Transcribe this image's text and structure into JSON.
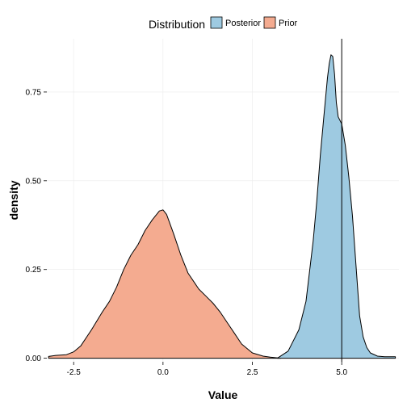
{
  "chart_data": {
    "type": "area",
    "title": "",
    "xlabel": "Value",
    "ylabel": "density",
    "xlim": [
      -3.25,
      6.6
    ],
    "ylim": [
      -0.01,
      0.9
    ],
    "x_ticks": [
      -2.5,
      0.0,
      2.5,
      5.0
    ],
    "x_tick_labels": [
      "-2.5",
      "0.0",
      "2.5",
      "5.0"
    ],
    "y_ticks": [
      0.0,
      0.25,
      0.5,
      0.75
    ],
    "y_tick_labels": [
      "0.00",
      "0.25",
      "0.50",
      "0.75"
    ],
    "grid": true,
    "legend": {
      "title": "Distribution",
      "placement": "top",
      "entries": [
        {
          "label": "Posterior",
          "color": "#9ecae1"
        },
        {
          "label": "Prior",
          "color": "#f4ab90"
        }
      ]
    },
    "reference_line": {
      "x": 5.0
    },
    "series": [
      {
        "name": "Prior",
        "color": "#f4ab90",
        "x": [
          -3.2,
          -3.0,
          -2.7,
          -2.5,
          -2.3,
          -2.0,
          -1.7,
          -1.5,
          -1.3,
          -1.1,
          -0.9,
          -0.7,
          -0.5,
          -0.3,
          -0.1,
          0.0,
          0.1,
          0.3,
          0.5,
          0.7,
          0.9,
          1.0,
          1.2,
          1.4,
          1.6,
          1.8,
          2.0,
          2.2,
          2.5,
          2.8,
          3.0,
          3.3
        ],
        "y": [
          0.005,
          0.008,
          0.01,
          0.018,
          0.035,
          0.08,
          0.13,
          0.16,
          0.2,
          0.25,
          0.29,
          0.32,
          0.36,
          0.39,
          0.415,
          0.418,
          0.405,
          0.35,
          0.29,
          0.24,
          0.21,
          0.195,
          0.175,
          0.155,
          0.13,
          0.1,
          0.07,
          0.04,
          0.015,
          0.006,
          0.003,
          0.0
        ]
      },
      {
        "name": "Posterior",
        "color": "#9ecae1",
        "x": [
          3.2,
          3.5,
          3.8,
          4.0,
          4.2,
          4.3,
          4.4,
          4.5,
          4.6,
          4.65,
          4.7,
          4.75,
          4.8,
          4.85,
          4.9,
          5.0,
          5.1,
          5.2,
          5.3,
          5.4,
          5.5,
          5.6,
          5.7,
          5.8,
          6.0,
          6.2,
          6.4,
          6.5
        ],
        "y": [
          0.0,
          0.02,
          0.08,
          0.16,
          0.33,
          0.44,
          0.57,
          0.68,
          0.79,
          0.83,
          0.855,
          0.85,
          0.8,
          0.72,
          0.68,
          0.66,
          0.6,
          0.51,
          0.4,
          0.26,
          0.12,
          0.06,
          0.03,
          0.015,
          0.006,
          0.004,
          0.004,
          0.004
        ]
      }
    ]
  }
}
